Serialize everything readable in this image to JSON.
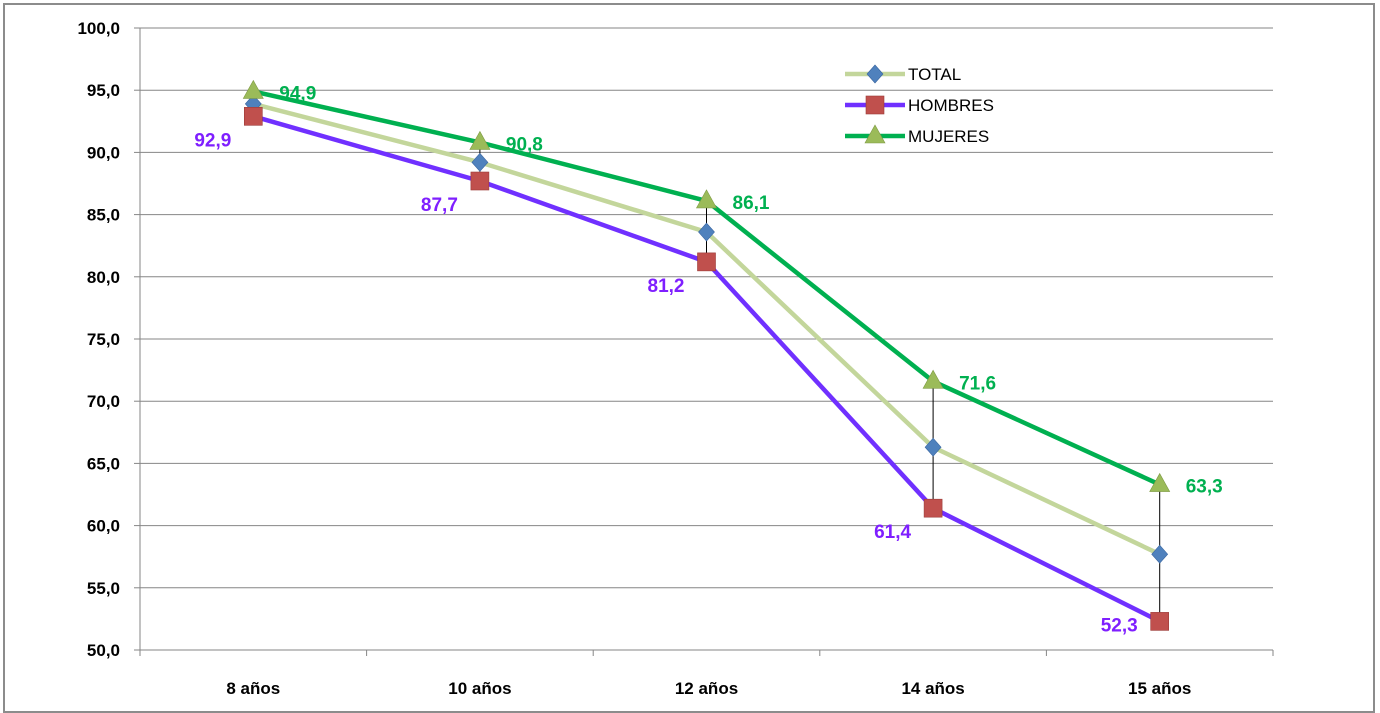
{
  "chart_data": {
    "type": "line",
    "title": "",
    "xlabel": "",
    "ylabel": "",
    "categories": [
      "8 años",
      "10 años",
      "12 años",
      "14 años",
      "15 años"
    ],
    "ylim": [
      50,
      100
    ],
    "ytick_step": 5,
    "ytick_labels": [
      "50,0",
      "55,0",
      "60,0",
      "65,0",
      "70,0",
      "75,0",
      "80,0",
      "85,0",
      "90,0",
      "95,0",
      "100,0"
    ],
    "grid": true,
    "legend_position": "top-right",
    "series": [
      {
        "name": "TOTAL",
        "values": [
          93.9,
          89.2,
          83.6,
          66.3,
          57.7
        ],
        "color": "#c3d69b",
        "marker": "diamond",
        "marker_color": "#4f81bd",
        "labels": [],
        "label_color": ""
      },
      {
        "name": "HOMBRES",
        "values": [
          92.9,
          87.7,
          81.2,
          61.4,
          52.3
        ],
        "color": "#7030ff",
        "marker": "square",
        "marker_color": "#c0504d",
        "labels": [
          "92,9",
          "87,7",
          "81,2",
          "61,4",
          "52,3"
        ],
        "label_color": "#7f1fff"
      },
      {
        "name": "MUJERES",
        "values": [
          94.9,
          90.8,
          86.1,
          71.6,
          63.3
        ],
        "color": "#00b050",
        "marker": "triangle",
        "marker_color": "#9bbb59",
        "labels": [
          "94,9",
          "90,8",
          "86,1",
          "71,6",
          "63,3"
        ],
        "label_color": "#00b050"
      }
    ],
    "gap_lines": true
  }
}
